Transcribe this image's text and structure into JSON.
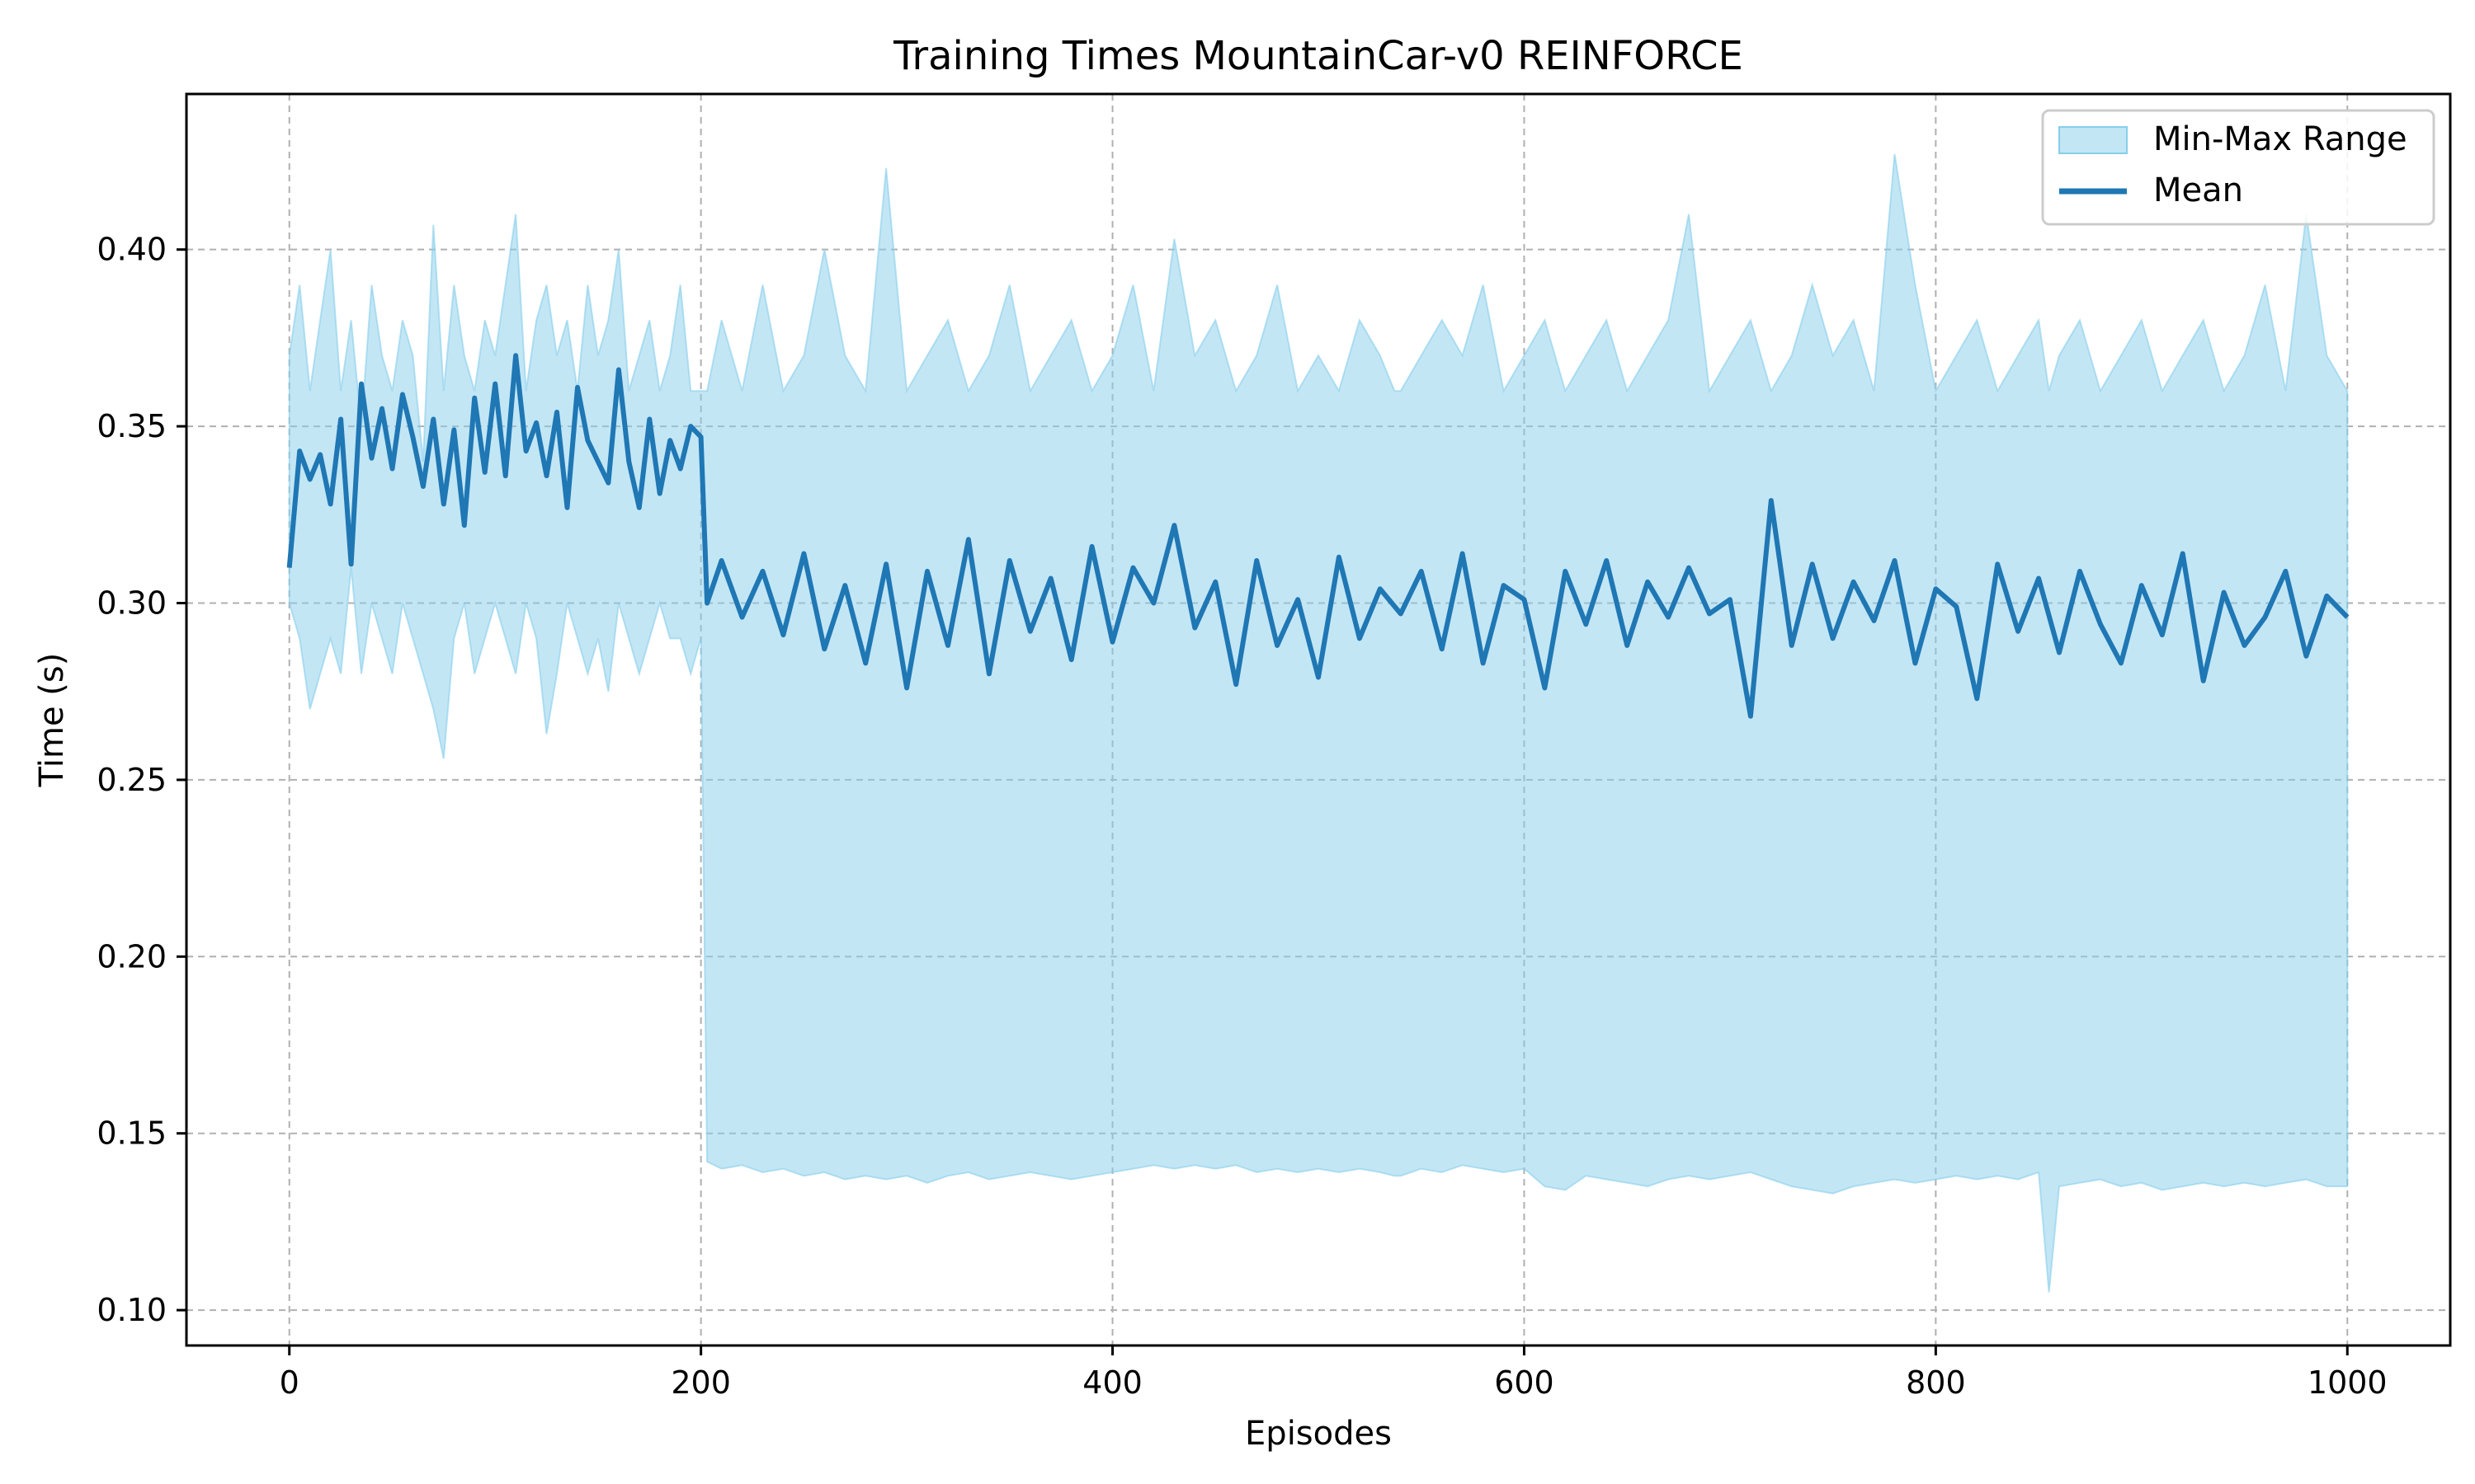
{
  "chart_data": {
    "type": "line",
    "title": "Training Times MountainCar-v0 REINFORCE",
    "xlabel": "Episodes",
    "ylabel": "Time (s)",
    "xlim": [
      -50,
      1050
    ],
    "ylim": [
      0.09,
      0.444
    ],
    "xticks": [
      0,
      200,
      400,
      600,
      800,
      1000
    ],
    "yticks": [
      0.1,
      0.15,
      0.2,
      0.25,
      0.3,
      0.35,
      0.4
    ],
    "xtick_labels": [
      "0",
      "200",
      "400",
      "600",
      "800",
      "1000"
    ],
    "ytick_labels": [
      "0.10",
      "0.15",
      "0.20",
      "0.25",
      "0.30",
      "0.35",
      "0.40"
    ],
    "grid": true,
    "legend_position": "top-right",
    "series": [
      {
        "name": "Min-Max Range",
        "kind": "band",
        "color": "#87ceeb",
        "x": [
          0,
          5,
          10,
          15,
          20,
          25,
          30,
          35,
          40,
          45,
          50,
          55,
          60,
          65,
          70,
          75,
          80,
          85,
          90,
          95,
          100,
          105,
          110,
          115,
          120,
          125,
          130,
          135,
          140,
          145,
          150,
          155,
          160,
          165,
          170,
          175,
          180,
          185,
          190,
          195,
          200,
          203,
          210,
          220,
          230,
          240,
          250,
          260,
          270,
          280,
          290,
          300,
          310,
          320,
          330,
          340,
          350,
          360,
          370,
          380,
          390,
          400,
          410,
          420,
          430,
          440,
          450,
          460,
          470,
          480,
          490,
          500,
          510,
          520,
          530,
          537,
          540,
          550,
          560,
          570,
          580,
          590,
          600,
          610,
          620,
          630,
          640,
          650,
          660,
          670,
          680,
          690,
          700,
          710,
          720,
          730,
          740,
          750,
          760,
          770,
          780,
          790,
          800,
          810,
          820,
          830,
          840,
          850,
          855,
          860,
          870,
          880,
          890,
          900,
          910,
          920,
          930,
          940,
          950,
          960,
          970,
          980,
          990,
          1000
        ],
        "min": [
          0.3,
          0.29,
          0.27,
          0.28,
          0.29,
          0.28,
          0.31,
          0.28,
          0.3,
          0.29,
          0.28,
          0.3,
          0.29,
          0.28,
          0.27,
          0.256,
          0.29,
          0.3,
          0.28,
          0.29,
          0.3,
          0.29,
          0.28,
          0.3,
          0.29,
          0.263,
          0.28,
          0.3,
          0.29,
          0.28,
          0.29,
          0.275,
          0.3,
          0.29,
          0.28,
          0.29,
          0.3,
          0.29,
          0.29,
          0.28,
          0.29,
          0.142,
          0.14,
          0.141,
          0.139,
          0.14,
          0.138,
          0.139,
          0.137,
          0.138,
          0.137,
          0.138,
          0.136,
          0.138,
          0.139,
          0.137,
          0.138,
          0.139,
          0.138,
          0.137,
          0.138,
          0.139,
          0.14,
          0.141,
          0.14,
          0.141,
          0.14,
          0.141,
          0.139,
          0.14,
          0.139,
          0.14,
          0.139,
          0.14,
          0.139,
          0.138,
          0.138,
          0.14,
          0.139,
          0.141,
          0.14,
          0.139,
          0.14,
          0.135,
          0.134,
          0.138,
          0.137,
          0.136,
          0.135,
          0.137,
          0.138,
          0.137,
          0.138,
          0.139,
          0.137,
          0.135,
          0.134,
          0.133,
          0.135,
          0.136,
          0.137,
          0.136,
          0.137,
          0.138,
          0.137,
          0.138,
          0.137,
          0.139,
          0.105,
          0.135,
          0.136,
          0.137,
          0.135,
          0.136,
          0.134,
          0.135,
          0.136,
          0.135,
          0.136,
          0.135,
          0.136,
          0.137,
          0.135,
          0.135
        ],
        "max": [
          0.37,
          0.39,
          0.36,
          0.38,
          0.4,
          0.36,
          0.38,
          0.35,
          0.39,
          0.37,
          0.36,
          0.38,
          0.37,
          0.34,
          0.407,
          0.36,
          0.39,
          0.37,
          0.36,
          0.38,
          0.37,
          0.39,
          0.41,
          0.36,
          0.38,
          0.39,
          0.37,
          0.38,
          0.36,
          0.39,
          0.37,
          0.38,
          0.4,
          0.36,
          0.37,
          0.38,
          0.36,
          0.37,
          0.39,
          0.36,
          0.36,
          0.36,
          0.38,
          0.36,
          0.39,
          0.36,
          0.37,
          0.4,
          0.37,
          0.36,
          0.423,
          0.36,
          0.37,
          0.38,
          0.36,
          0.37,
          0.39,
          0.36,
          0.37,
          0.38,
          0.36,
          0.37,
          0.39,
          0.36,
          0.403,
          0.37,
          0.38,
          0.36,
          0.37,
          0.39,
          0.36,
          0.37,
          0.36,
          0.38,
          0.37,
          0.36,
          0.36,
          0.37,
          0.38,
          0.37,
          0.39,
          0.36,
          0.37,
          0.38,
          0.36,
          0.37,
          0.38,
          0.36,
          0.37,
          0.38,
          0.41,
          0.36,
          0.37,
          0.38,
          0.36,
          0.37,
          0.39,
          0.37,
          0.38,
          0.36,
          0.427,
          0.39,
          0.36,
          0.37,
          0.38,
          0.36,
          0.37,
          0.38,
          0.36,
          0.37,
          0.38,
          0.36,
          0.37,
          0.38,
          0.36,
          0.37,
          0.38,
          0.36,
          0.37,
          0.39,
          0.36,
          0.41,
          0.37,
          0.36
        ]
      },
      {
        "name": "Mean",
        "kind": "line",
        "color": "#1f77b4",
        "x": [
          0,
          5,
          10,
          15,
          20,
          25,
          30,
          35,
          40,
          45,
          50,
          55,
          60,
          65,
          70,
          75,
          80,
          85,
          90,
          95,
          100,
          105,
          110,
          115,
          120,
          125,
          130,
          135,
          140,
          145,
          150,
          155,
          160,
          165,
          170,
          175,
          180,
          185,
          190,
          195,
          200,
          203,
          210,
          220,
          230,
          240,
          250,
          260,
          270,
          280,
          290,
          300,
          310,
          320,
          330,
          340,
          350,
          360,
          370,
          380,
          390,
          400,
          410,
          420,
          430,
          440,
          450,
          460,
          470,
          480,
          490,
          500,
          510,
          520,
          530,
          540,
          550,
          560,
          570,
          580,
          590,
          600,
          610,
          620,
          630,
          640,
          650,
          660,
          670,
          680,
          690,
          700,
          710,
          720,
          730,
          740,
          750,
          760,
          770,
          780,
          790,
          800,
          810,
          820,
          830,
          840,
          850,
          860,
          870,
          880,
          890,
          900,
          910,
          920,
          930,
          940,
          950,
          960,
          970,
          980,
          990,
          1000
        ],
        "values": [
          0.31,
          0.343,
          0.335,
          0.342,
          0.328,
          0.352,
          0.311,
          0.362,
          0.341,
          0.355,
          0.338,
          0.359,
          0.347,
          0.333,
          0.352,
          0.328,
          0.349,
          0.322,
          0.358,
          0.337,
          0.362,
          0.336,
          0.37,
          0.343,
          0.351,
          0.336,
          0.354,
          0.327,
          0.361,
          0.346,
          0.34,
          0.334,
          0.366,
          0.34,
          0.327,
          0.352,
          0.331,
          0.346,
          0.338,
          0.35,
          0.347,
          0.3,
          0.312,
          0.296,
          0.309,
          0.291,
          0.314,
          0.287,
          0.305,
          0.283,
          0.311,
          0.276,
          0.309,
          0.288,
          0.318,
          0.28,
          0.312,
          0.292,
          0.307,
          0.284,
          0.316,
          0.289,
          0.31,
          0.3,
          0.322,
          0.293,
          0.306,
          0.277,
          0.312,
          0.288,
          0.301,
          0.279,
          0.313,
          0.29,
          0.304,
          0.297,
          0.309,
          0.287,
          0.314,
          0.283,
          0.305,
          0.301,
          0.276,
          0.309,
          0.294,
          0.312,
          0.288,
          0.306,
          0.296,
          0.31,
          0.297,
          0.301,
          0.268,
          0.329,
          0.288,
          0.311,
          0.29,
          0.306,
          0.295,
          0.312,
          0.283,
          0.304,
          0.299,
          0.273,
          0.311,
          0.292,
          0.307,
          0.286,
          0.309,
          0.294,
          0.283,
          0.305,
          0.291,
          0.314,
          0.278,
          0.303,
          0.288,
          0.296,
          0.309,
          0.285,
          0.302,
          0.296
        ]
      }
    ]
  }
}
